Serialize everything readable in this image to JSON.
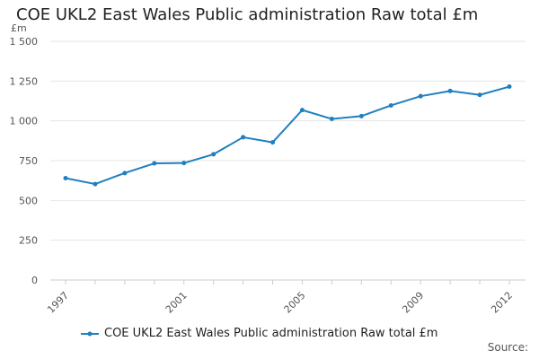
{
  "page": {
    "source_label": "Source:"
  },
  "chart_data": {
    "type": "line",
    "title": "COE UKL2 East Wales Public administration Raw total £m",
    "ylabel": "£m",
    "xlabel": "",
    "ylim": [
      0,
      1500
    ],
    "yticks": [
      0,
      250,
      500,
      750,
      1000,
      1250,
      1500
    ],
    "ytick_labels": [
      "0",
      "250",
      "500",
      "750",
      "1 000",
      "1 250",
      "1 500"
    ],
    "x": [
      1997,
      1998,
      1999,
      2000,
      2001,
      2002,
      2003,
      2004,
      2005,
      2006,
      2007,
      2008,
      2009,
      2010,
      2011,
      2012
    ],
    "xtick_values": [
      1997,
      2001,
      2005,
      2009,
      2012
    ],
    "series": [
      {
        "name": "COE UKL2 East Wales Public administration Raw total £m",
        "color": "#1f7fbf",
        "values": [
          640,
          603,
          672,
          733,
          735,
          790,
          897,
          865,
          1068,
          1012,
          1030,
          1097,
          1155,
          1188,
          1163,
          1215
        ]
      }
    ],
    "grid": true,
    "legend_position": "bottom-left"
  }
}
